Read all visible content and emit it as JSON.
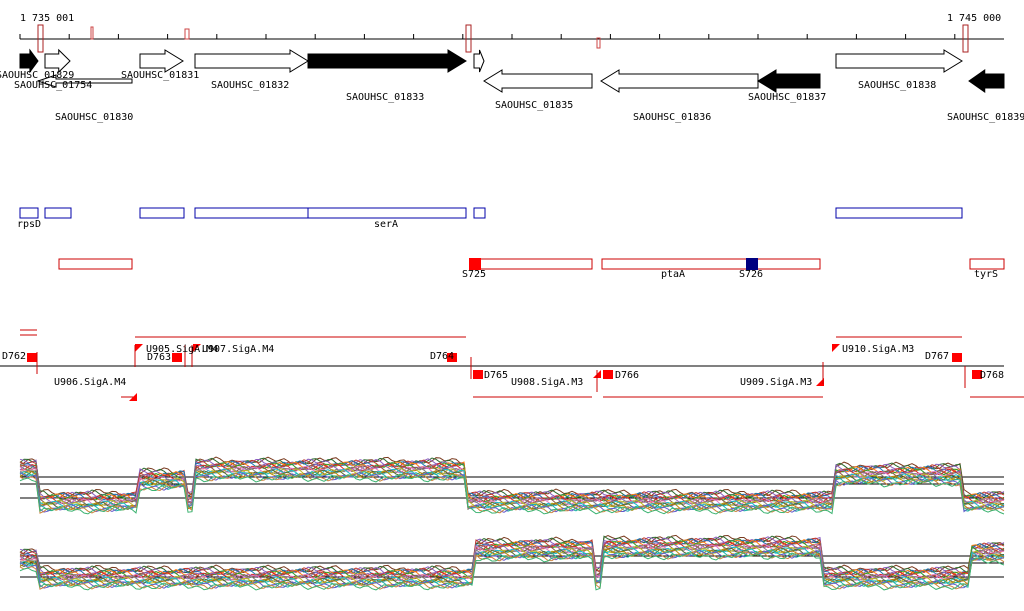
{
  "ruler": {
    "start": "1 735 001",
    "end": "1 745 000"
  },
  "genes": [
    {
      "label": "SAOUHSC_01829",
      "strand": "+",
      "fill": "black"
    },
    {
      "label": "SAOUHSC_01754",
      "strand": "+",
      "fill": "white"
    },
    {
      "label": "SAOUHSC_01830",
      "strand": "-",
      "fill": "white"
    },
    {
      "label": "SAOUHSC_01831",
      "strand": "+",
      "fill": "white"
    },
    {
      "label": "SAOUHSC_01832",
      "strand": "+",
      "fill": "white"
    },
    {
      "label": "SAOUHSC_01833",
      "strand": "+",
      "fill": "black"
    },
    {
      "label": "SAOUHSC_01835",
      "strand": "-",
      "fill": "white"
    },
    {
      "label": "SAOUHSC_01836",
      "strand": "-",
      "fill": "white"
    },
    {
      "label": "SAOUHSC_01837",
      "strand": "-",
      "fill": "black"
    },
    {
      "label": "SAOUHSC_01838",
      "strand": "+",
      "fill": "white"
    },
    {
      "label": "SAOUHSC_01839",
      "strand": "-",
      "fill": "black"
    }
  ],
  "operons_blue": [
    {
      "label": "rpsD"
    },
    {
      "label": "serA"
    }
  ],
  "operons_red": [
    {
      "label": "S725"
    },
    {
      "label": "ptaA"
    },
    {
      "label": "S726"
    },
    {
      "label": "tyrS"
    }
  ],
  "transcripts": [
    {
      "label": "D762"
    },
    {
      "label": "U905.SigA.M4"
    },
    {
      "label": "U906.SigA.M4"
    },
    {
      "label": "D763"
    },
    {
      "label": "U907.SigA.M4"
    },
    {
      "label": "D764"
    },
    {
      "label": "D765"
    },
    {
      "label": "U908.SigA.M3"
    },
    {
      "label": "D766"
    },
    {
      "label": "U909.SigA.M3"
    },
    {
      "label": "U910.SigA.M3"
    },
    {
      "label": "D767"
    },
    {
      "label": "D768"
    }
  ],
  "colors": {
    "gene_stroke": "#000000",
    "operon_blue": "#0000aa",
    "operon_red": "#cc0000",
    "marker": "#ff0000",
    "s726_marker": "#000080"
  }
}
